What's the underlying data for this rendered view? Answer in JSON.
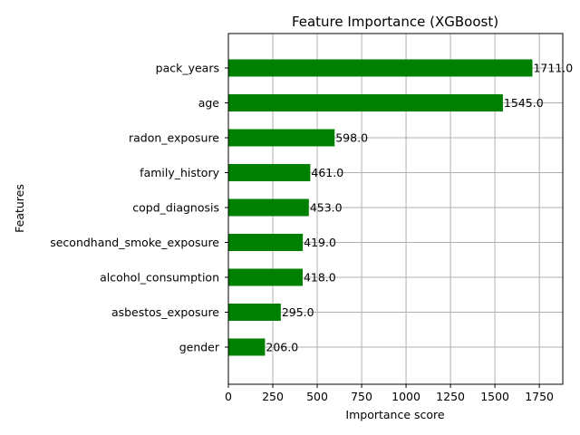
{
  "chart_data": {
    "type": "bar",
    "orientation": "horizontal",
    "title": "Feature Importance (XGBoost)",
    "xlabel": "Importance score",
    "ylabel": "Features",
    "categories": [
      "pack_years",
      "age",
      "radon_exposure",
      "family_history",
      "copd_diagnosis",
      "secondhand_smoke_exposure",
      "alcohol_consumption",
      "asbestos_exposure",
      "gender"
    ],
    "values": [
      1711,
      1545,
      598,
      461,
      453,
      419,
      418,
      295,
      206
    ],
    "data_labels": [
      "1711.0",
      "1545.0",
      "598.0",
      "461.0",
      "453.0",
      "419.0",
      "418.0",
      "295.0",
      "206.0"
    ],
    "xlim": [
      0,
      1882
    ],
    "xticks": [
      0,
      250,
      500,
      750,
      1000,
      1250,
      1500,
      1750
    ],
    "xtick_labels": [
      "0",
      "250",
      "500",
      "750",
      "1000",
      "1250",
      "1500",
      "1750"
    ],
    "grid": true,
    "bar_color": "#008000",
    "grid_color": "#b0b0b0"
  }
}
